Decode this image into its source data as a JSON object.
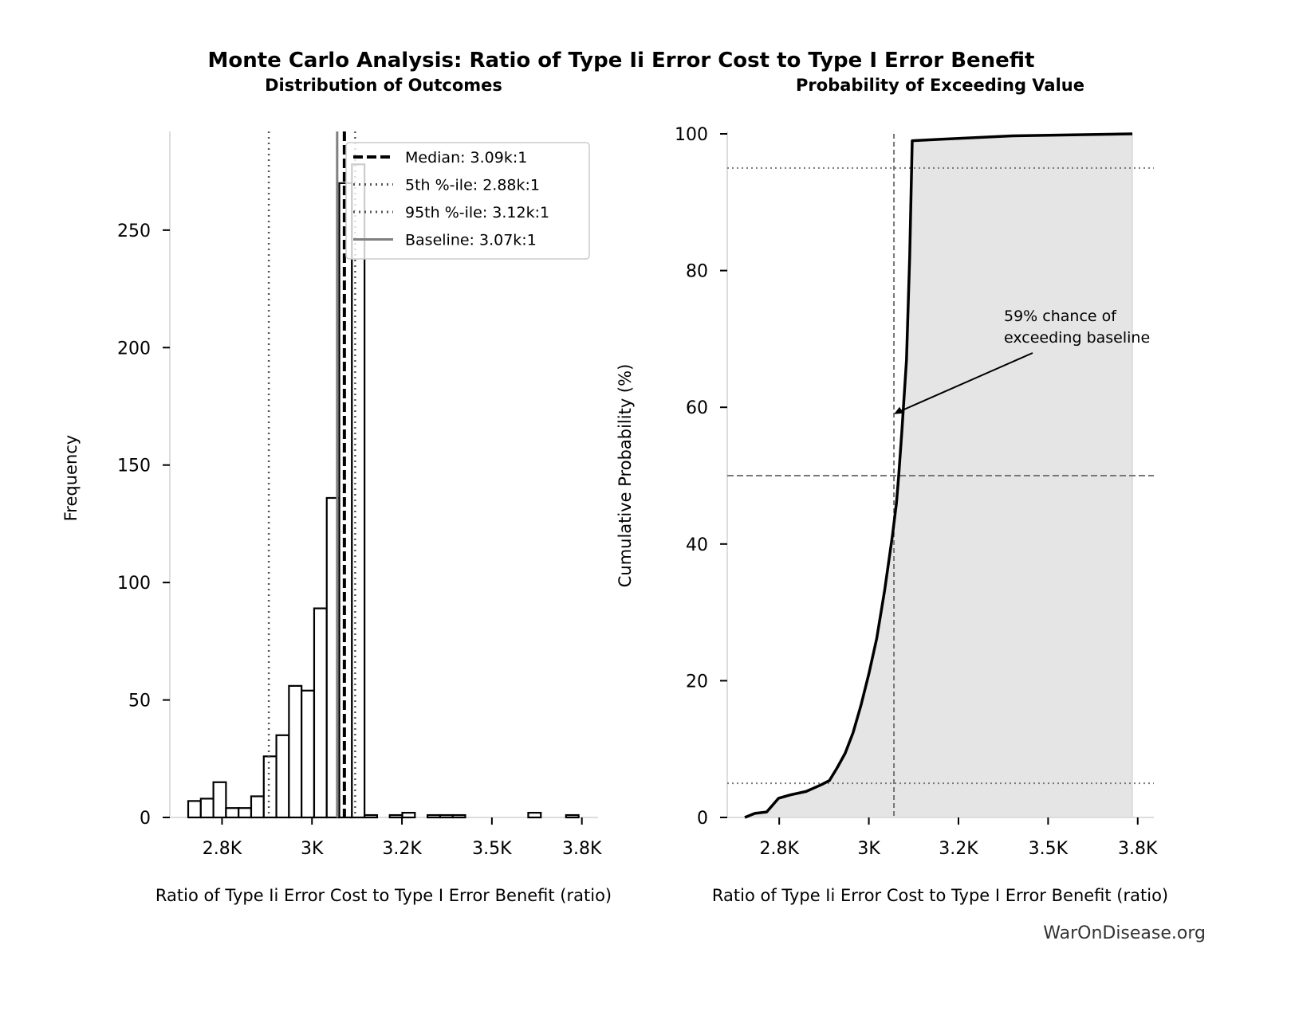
{
  "suptitle": "Monte Carlo Analysis: Ratio of Type Ii Error Cost to Type I Error Benefit",
  "watermark": "WarOnDisease.org",
  "colors": {
    "bar_fill": "#ffffff",
    "bar_edge": "#000000",
    "cdf_fill": "#e5e5e5",
    "baseline": "#808080",
    "percentile": "#555555"
  },
  "chart_data": [
    {
      "type": "bar",
      "title": "Distribution of Outcomes",
      "xlabel": "Ratio of Type Ii Error Cost to Type I Error Benefit (ratio)",
      "ylabel": "Frequency",
      "xlim": [
        2605,
        3795
      ],
      "ylim": [
        0,
        292
      ],
      "xticks": [
        2750,
        3000,
        3250,
        3500,
        3750
      ],
      "xtick_labels": [
        "2.8K",
        "3K",
        "3.2K",
        "3.5K",
        "3.8K"
      ],
      "yticks": [
        0,
        50,
        100,
        150,
        200,
        250
      ],
      "ytick_labels": [
        "0",
        "50",
        "100",
        "150",
        "200",
        "250"
      ],
      "bin_start": 2656,
      "bin_width": 35,
      "counts": [
        7,
        8,
        15,
        4,
        4,
        9,
        26,
        35,
        56,
        54,
        89,
        136,
        270,
        278,
        1,
        0,
        1,
        2,
        0,
        1,
        1,
        1,
        0,
        0,
        0,
        0,
        0,
        2,
        0,
        0,
        1
      ],
      "vlines": [
        {
          "name": "Median: 3.09k:1",
          "x": 3090,
          "style": "dashed",
          "color": "#000000"
        },
        {
          "name": "5th %-ile: 2.88k:1",
          "x": 2880,
          "style": "dotted",
          "color": "#555555"
        },
        {
          "name": "95th %-ile: 3.12k:1",
          "x": 3120,
          "style": "dotted",
          "color": "#555555"
        },
        {
          "name": "Baseline: 3.07k:1",
          "x": 3070,
          "style": "solid",
          "color": "#808080"
        }
      ],
      "legend_position": "upper-right"
    },
    {
      "type": "line",
      "title": "Probability of Exceeding Value",
      "xlabel": "Ratio of Type Ii Error Cost to Type I Error Benefit (ratio)",
      "ylabel": "Cumulative Probability (%)",
      "xlim": [
        2605,
        3795
      ],
      "ylim": [
        0,
        100
      ],
      "xticks": [
        2750,
        3000,
        3250,
        3500,
        3750
      ],
      "xtick_labels": [
        "2.8K",
        "3K",
        "3.2K",
        "3.5K",
        "3.8K"
      ],
      "yticks": [
        0,
        20,
        40,
        60,
        80,
        100
      ],
      "ytick_labels": [
        "0",
        "20",
        "40",
        "60",
        "80",
        "100"
      ],
      "x": [
        2654,
        2682,
        2715,
        2748,
        2781,
        2825,
        2868,
        2890,
        2912,
        2934,
        2956,
        2978,
        3000,
        3022,
        3044,
        3066,
        3077,
        3083,
        3092,
        3105,
        3114,
        3121,
        3197,
        3395,
        3735
      ],
      "y": [
        0,
        0.6,
        0.8,
        2.8,
        3.3,
        3.8,
        4.8,
        5.4,
        7.3,
        9.4,
        12.4,
        16.4,
        21.0,
        26.2,
        33.2,
        41.3,
        46.0,
        49.8,
        56.4,
        66.9,
        82.1,
        99.0,
        99.2,
        99.7,
        100
      ],
      "hlines": [
        {
          "y": 95,
          "style": "dotted"
        },
        {
          "y": 50,
          "style": "dashed"
        },
        {
          "y": 5,
          "style": "dotted"
        }
      ],
      "baseline_x": 3070,
      "annotation": {
        "text_line1": "59% chance of",
        "text_line2": "exceeding baseline",
        "point": [
          3070,
          59
        ]
      }
    }
  ]
}
